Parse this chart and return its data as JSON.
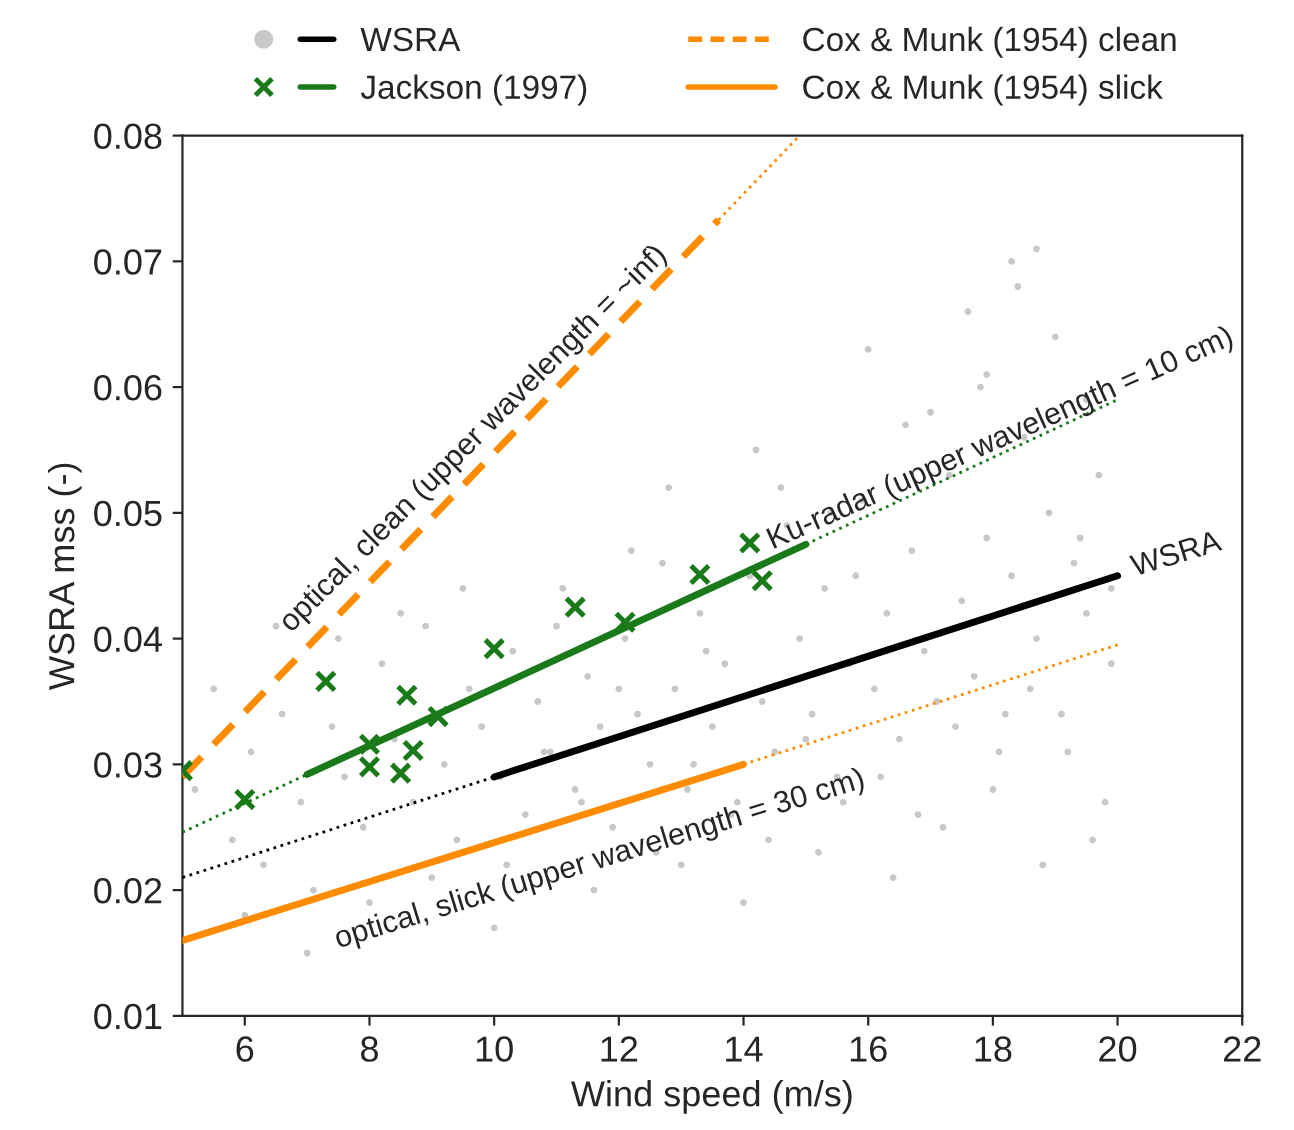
{
  "chart_data": {
    "type": "scatter",
    "xlabel": "Wind speed (m/s)",
    "ylabel": "WSRA mss (-)",
    "xlim": [
      5,
      22
    ],
    "xticks": [
      6,
      8,
      10,
      12,
      14,
      16,
      18,
      20,
      22
    ],
    "ylim": [
      0.01,
      0.08
    ],
    "yticks": [
      0.01,
      0.02,
      0.03,
      0.04,
      0.05,
      0.06,
      0.07,
      0.08
    ],
    "grid": false,
    "legend": "top",
    "series": [
      {
        "type": "scatter",
        "marker": "circle",
        "color": "#c8c8c8",
        "x": [
          5.2,
          5.5,
          5.8,
          6.1,
          6.3,
          6.6,
          6.9,
          7.1,
          7.4,
          7.6,
          7.9,
          8.2,
          8.4,
          8.7,
          8.9,
          9.2,
          9.4,
          9.6,
          9.8,
          10.1,
          10.3,
          10.5,
          10.7,
          10.9,
          11.1,
          11.3,
          11.5,
          11.7,
          11.9,
          12.1,
          12.3,
          12.5,
          12.7,
          12.9,
          13.1,
          13.3,
          13.5,
          13.7,
          13.9,
          14.1,
          14.3,
          14.5,
          14.7,
          14.9,
          15.1,
          15.3,
          15.5,
          15.7,
          15.9,
          16.1,
          16.3,
          16.5,
          16.7,
          16.9,
          17.1,
          17.3,
          17.5,
          17.7,
          17.9,
          18.1,
          18.3,
          18.5,
          18.7,
          18.9,
          19.1,
          19.3,
          19.5,
          19.7,
          19.9,
          10.2,
          10.8,
          11.4,
          12.0,
          12.6,
          13.2,
          13.8,
          14.4,
          15.0,
          15.6,
          16.2,
          16.8,
          17.4,
          18.0,
          18.6,
          19.2,
          19.8,
          11.0,
          12.2,
          13.4,
          14.6,
          15.8,
          17.0,
          18.2,
          19.4,
          16.0,
          17.6,
          18.4,
          19.0,
          6.0,
          7.0,
          8.0,
          9.0,
          10.0,
          11.6,
          13.0,
          14.0,
          15.2,
          16.4,
          17.2,
          18.8,
          19.6,
          12.8,
          14.2,
          15.4,
          16.6,
          17.8,
          19.9,
          9.5,
          8.5,
          7.5,
          6.5,
          18.3,
          18.7,
          17.9,
          19.5
        ],
        "values": [
          0.028,
          0.036,
          0.024,
          0.031,
          0.022,
          0.034,
          0.027,
          0.02,
          0.033,
          0.029,
          0.025,
          0.038,
          0.032,
          0.027,
          0.041,
          0.03,
          0.024,
          0.036,
          0.033,
          0.029,
          0.039,
          0.026,
          0.035,
          0.031,
          0.044,
          0.028,
          0.037,
          0.033,
          0.025,
          0.04,
          0.034,
          0.03,
          0.046,
          0.036,
          0.028,
          0.042,
          0.033,
          0.038,
          0.027,
          0.045,
          0.035,
          0.031,
          0.049,
          0.04,
          0.034,
          0.044,
          0.029,
          0.038,
          0.051,
          0.036,
          0.042,
          0.032,
          0.047,
          0.039,
          0.035,
          0.053,
          0.043,
          0.037,
          0.048,
          0.031,
          0.045,
          0.056,
          0.04,
          0.05,
          0.034,
          0.046,
          0.042,
          0.053,
          0.038,
          0.022,
          0.031,
          0.027,
          0.036,
          0.023,
          0.03,
          0.026,
          0.024,
          0.032,
          0.027,
          0.029,
          0.026,
          0.033,
          0.028,
          0.036,
          0.031,
          0.027,
          0.041,
          0.047,
          0.039,
          0.052,
          0.045,
          0.058,
          0.034,
          0.048,
          0.063,
          0.066,
          0.068,
          0.064,
          0.018,
          0.015,
          0.019,
          0.021,
          0.017,
          0.02,
          0.022,
          0.019,
          0.023,
          0.021,
          0.025,
          0.022,
          0.024,
          0.052,
          0.055,
          0.05,
          0.057,
          0.06,
          0.044,
          0.044,
          0.042,
          0.04,
          0.041,
          0.07,
          0.071,
          0.061,
          0.059
        ]
      },
      {
        "name": "WSRA",
        "type": "line",
        "line_style": "solid",
        "color": "#000000",
        "x": [
          10,
          20
        ],
        "values": [
          0.029,
          0.045
        ]
      },
      {
        "type": "line",
        "line_style": "dotted",
        "color": "#000000",
        "x": [
          5,
          10
        ],
        "values": [
          0.021,
          0.029
        ]
      },
      {
        "type": "scatter",
        "marker": "cross",
        "color": "#1a7a1a",
        "x": [
          5.0,
          6.0,
          7.3,
          8.0,
          8.0,
          8.5,
          8.6,
          8.7,
          9.1,
          10.0,
          11.3,
          12.1,
          13.3,
          14.1,
          14.3
        ],
        "values": [
          0.0295,
          0.0272,
          0.0366,
          0.0316,
          0.0298,
          0.0293,
          0.0355,
          0.0311,
          0.0338,
          0.0392,
          0.0425,
          0.0413,
          0.0451,
          0.0476,
          0.0446
        ]
      },
      {
        "name": "Jackson (1997)",
        "type": "line",
        "line_style": "solid",
        "color": "#1a7a1a",
        "x": [
          7,
          15
        ],
        "values": [
          0.0292,
          0.0475
        ]
      },
      {
        "type": "line",
        "line_style": "dotted",
        "color": "#1a7a1a",
        "x": [
          5,
          7
        ],
        "values": [
          0.0246,
          0.0292
        ]
      },
      {
        "type": "line",
        "line_style": "dotted",
        "color": "#1a7a1a",
        "x": [
          15,
          20
        ],
        "values": [
          0.0475,
          0.059
        ]
      },
      {
        "name": "Cox & Munk (1954) clean",
        "type": "line",
        "line_style": "dashed",
        "color": "#ff8c00",
        "x": [
          5,
          13.6
        ],
        "values": [
          0.029,
          0.0733
        ]
      },
      {
        "type": "line",
        "line_style": "dotted",
        "color": "#ff8c00",
        "x": [
          13.6,
          14.9
        ],
        "values": [
          0.0733,
          0.08
        ]
      },
      {
        "name": "Cox & Munk (1954) slick",
        "type": "line",
        "line_style": "solid",
        "color": "#ff8c00",
        "x": [
          5,
          14
        ],
        "values": [
          0.016,
          0.03
        ]
      },
      {
        "type": "line",
        "line_style": "dotted",
        "color": "#ff8c00",
        "x": [
          14,
          20
        ],
        "values": [
          0.03,
          0.0395
        ]
      }
    ],
    "annotations": [
      "optical, clean (upper wavelength = ~inf)",
      "Ku-radar (upper wavelength = 10 cm)",
      "WSRA",
      "optical, slick (upper wavelength = 30 cm)"
    ]
  }
}
